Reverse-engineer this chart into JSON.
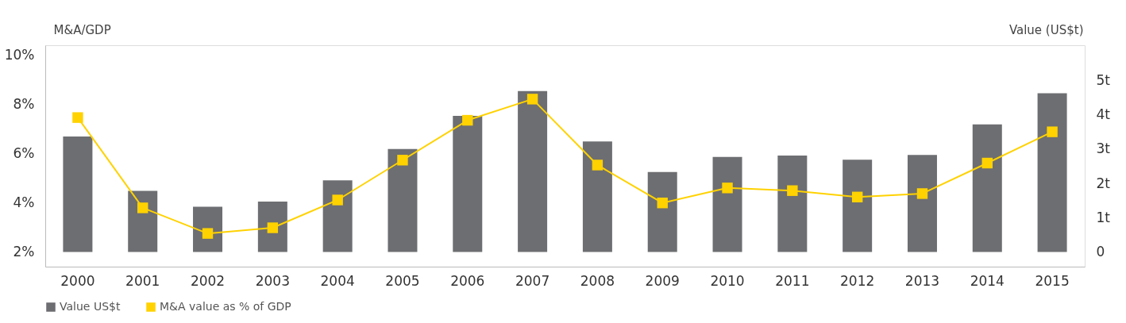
{
  "chart_data": {
    "type": "bar",
    "ylabel": "M&A/GDP",
    "y2label": "Value (US$t)",
    "categories": [
      "2000",
      "2001",
      "2002",
      "2003",
      "2004",
      "2005",
      "2006",
      "2007",
      "2008",
      "2009",
      "2010",
      "2011",
      "2012",
      "2013",
      "2014",
      "2015"
    ],
    "series": [
      {
        "name": "Value US$t",
        "axis": "y2",
        "color": "#6d6e71",
        "values": [
          3.37,
          1.78,
          1.32,
          1.47,
          2.09,
          3.0,
          3.97,
          4.69,
          3.22,
          2.33,
          2.77,
          2.81,
          2.69,
          2.83,
          3.72,
          4.63
        ]
      },
      {
        "name": "M&A value as % of GDP",
        "type": "line",
        "color": "#ffd200",
        "marker": "square",
        "values": [
          7.46,
          3.79,
          2.75,
          2.98,
          4.11,
          5.73,
          7.35,
          8.21,
          5.53,
          3.99,
          4.6,
          4.49,
          4.23,
          4.37,
          5.61,
          6.88
        ]
      }
    ],
    "ylim": [
      1.4,
      10.4
    ],
    "yticks": [
      {
        "value": 2,
        "label": "2%"
      },
      {
        "value": 4,
        "label": "4%"
      },
      {
        "value": 6,
        "label": "6%"
      },
      {
        "value": 8,
        "label": "8%"
      },
      {
        "value": 10,
        "label": "10%"
      }
    ],
    "y2lim": [
      -0.43,
      6.03
    ],
    "y2ticks": [
      0,
      {
        "value": 1,
        "label": "1t"
      },
      {
        "value": 2,
        "label": "2t"
      },
      {
        "value": 3,
        "label": "3t"
      },
      {
        "value": 4,
        "label": "4t"
      },
      {
        "value": 5,
        "label": "5t"
      }
    ],
    "grid": false,
    "legend": "bottom"
  }
}
